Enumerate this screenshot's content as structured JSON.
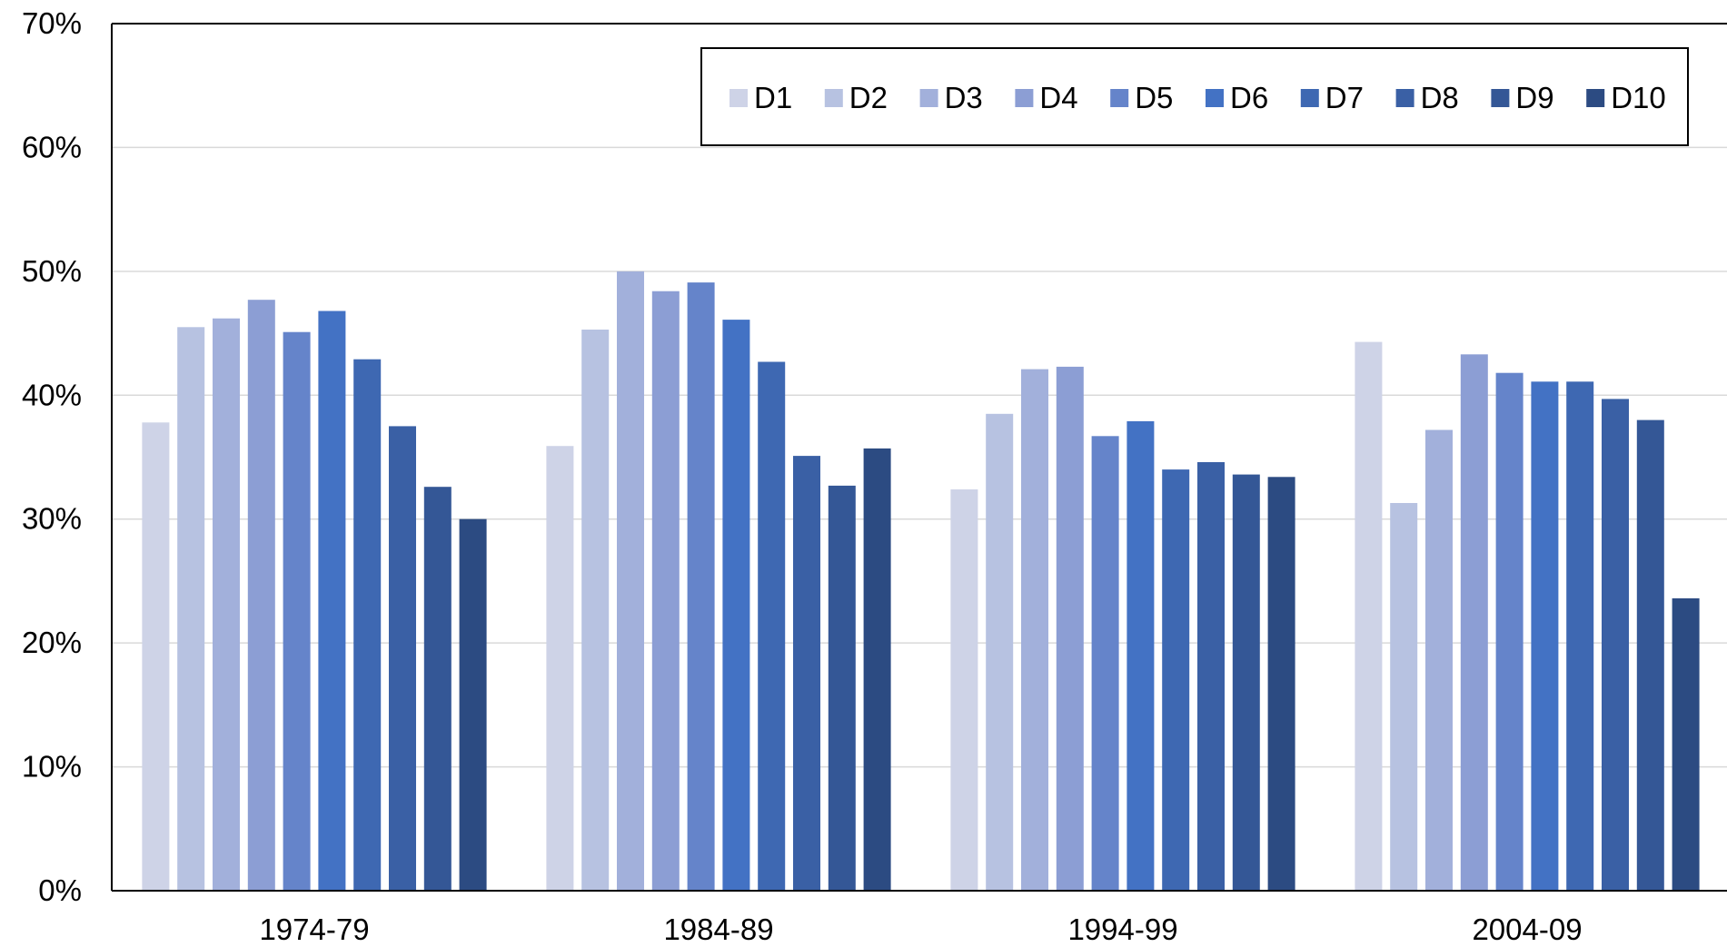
{
  "chart_data": {
    "type": "bar",
    "title": "",
    "xlabel": "",
    "ylabel": "",
    "ylim": [
      0,
      70
    ],
    "y_ticks": [
      "0%",
      "10%",
      "20%",
      "30%",
      "40%",
      "50%",
      "60%",
      "70%"
    ],
    "y_tick_values": [
      0,
      10,
      20,
      30,
      40,
      50,
      60,
      70
    ],
    "grid": true,
    "legend_position": "top-right",
    "categories": [
      "1974-79",
      "1984-89",
      "1994-99",
      "2004-09"
    ],
    "series": [
      {
        "name": "D1",
        "color": "#ced3e7",
        "values": [
          37.8,
          35.9,
          32.4,
          44.3
        ]
      },
      {
        "name": "D2",
        "color": "#b7c2e1",
        "values": [
          45.5,
          45.3,
          38.5,
          31.3
        ]
      },
      {
        "name": "D3",
        "color": "#a2b0db",
        "values": [
          46.2,
          50.0,
          42.1,
          37.2
        ]
      },
      {
        "name": "D4",
        "color": "#8c9ed4",
        "values": [
          47.7,
          48.4,
          42.3,
          43.3
        ]
      },
      {
        "name": "D5",
        "color": "#6584ca",
        "values": [
          45.1,
          49.1,
          36.7,
          41.8
        ]
      },
      {
        "name": "D6",
        "color": "#4372c4",
        "values": [
          46.8,
          46.1,
          37.9,
          41.1
        ]
      },
      {
        "name": "D7",
        "color": "#3e68b2",
        "values": [
          42.9,
          42.7,
          34.0,
          41.1
        ]
      },
      {
        "name": "D8",
        "color": "#3a60a5",
        "values": [
          37.5,
          35.1,
          34.6,
          39.7
        ]
      },
      {
        "name": "D9",
        "color": "#345796",
        "values": [
          32.6,
          32.7,
          33.6,
          38.0
        ]
      },
      {
        "name": "D10",
        "color": "#2c4b82",
        "values": [
          30.0,
          35.7,
          33.4,
          23.6
        ]
      }
    ]
  }
}
